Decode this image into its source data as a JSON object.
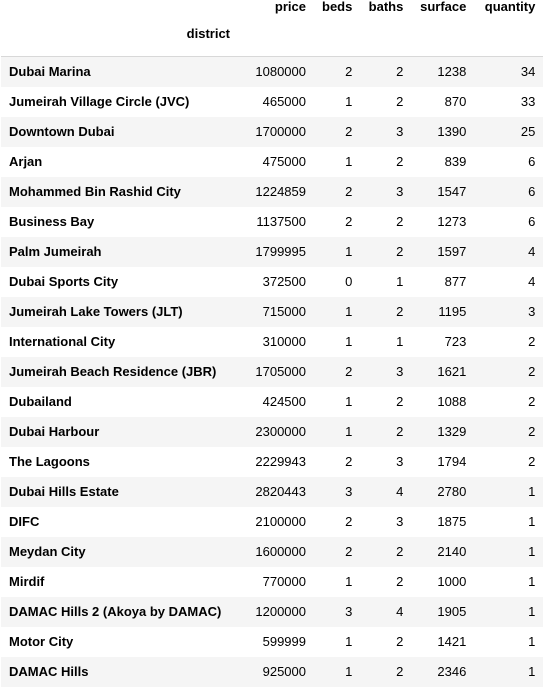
{
  "table": {
    "index_name": "district",
    "columns": [
      "price",
      "beds",
      "baths",
      "surface",
      "quantity"
    ],
    "rows": [
      {
        "district": "Dubai Marina",
        "price": "1080000",
        "beds": "2",
        "baths": "2",
        "surface": "1238",
        "quantity": "34"
      },
      {
        "district": "Jumeirah Village Circle (JVC)",
        "price": "465000",
        "beds": "1",
        "baths": "2",
        "surface": "870",
        "quantity": "33"
      },
      {
        "district": "Downtown Dubai",
        "price": "1700000",
        "beds": "2",
        "baths": "3",
        "surface": "1390",
        "quantity": "25"
      },
      {
        "district": "Arjan",
        "price": "475000",
        "beds": "1",
        "baths": "2",
        "surface": "839",
        "quantity": "6"
      },
      {
        "district": "Mohammed Bin Rashid City",
        "price": "1224859",
        "beds": "2",
        "baths": "3",
        "surface": "1547",
        "quantity": "6"
      },
      {
        "district": "Business Bay",
        "price": "1137500",
        "beds": "2",
        "baths": "2",
        "surface": "1273",
        "quantity": "6"
      },
      {
        "district": "Palm Jumeirah",
        "price": "1799995",
        "beds": "1",
        "baths": "2",
        "surface": "1597",
        "quantity": "4"
      },
      {
        "district": "Dubai Sports City",
        "price": "372500",
        "beds": "0",
        "baths": "1",
        "surface": "877",
        "quantity": "4"
      },
      {
        "district": "Jumeirah Lake Towers (JLT)",
        "price": "715000",
        "beds": "1",
        "baths": "2",
        "surface": "1195",
        "quantity": "3"
      },
      {
        "district": "International City",
        "price": "310000",
        "beds": "1",
        "baths": "1",
        "surface": "723",
        "quantity": "2"
      },
      {
        "district": "Jumeirah Beach Residence (JBR)",
        "price": "1705000",
        "beds": "2",
        "baths": "3",
        "surface": "1621",
        "quantity": "2"
      },
      {
        "district": "Dubailand",
        "price": "424500",
        "beds": "1",
        "baths": "2",
        "surface": "1088",
        "quantity": "2"
      },
      {
        "district": "Dubai Harbour",
        "price": "2300000",
        "beds": "1",
        "baths": "2",
        "surface": "1329",
        "quantity": "2"
      },
      {
        "district": "The Lagoons",
        "price": "2229943",
        "beds": "2",
        "baths": "3",
        "surface": "1794",
        "quantity": "2"
      },
      {
        "district": "Dubai Hills Estate",
        "price": "2820443",
        "beds": "3",
        "baths": "4",
        "surface": "2780",
        "quantity": "1"
      },
      {
        "district": "DIFC",
        "price": "2100000",
        "beds": "2",
        "baths": "3",
        "surface": "1875",
        "quantity": "1"
      },
      {
        "district": "Meydan City",
        "price": "1600000",
        "beds": "2",
        "baths": "2",
        "surface": "2140",
        "quantity": "1"
      },
      {
        "district": "Mirdif",
        "price": "770000",
        "beds": "1",
        "baths": "2",
        "surface": "1000",
        "quantity": "1"
      },
      {
        "district": "DAMAC Hills 2 (Akoya by DAMAC)",
        "price": "1200000",
        "beds": "3",
        "baths": "4",
        "surface": "1905",
        "quantity": "1"
      },
      {
        "district": "Motor City",
        "price": "599999",
        "beds": "1",
        "baths": "2",
        "surface": "1421",
        "quantity": "1"
      },
      {
        "district": "DAMAC Hills",
        "price": "925000",
        "beds": "1",
        "baths": "2",
        "surface": "2346",
        "quantity": "1"
      }
    ]
  }
}
